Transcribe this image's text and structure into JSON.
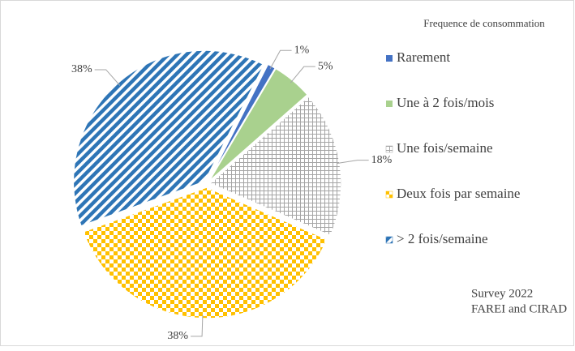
{
  "chart_data": {
    "type": "pie",
    "legend_title": "Frequence de consommation",
    "categories": [
      "Rarement",
      "Une à 2 fois/mois",
      "Une fois/semaine",
      "Deux fois par semaine",
      "> 2  fois/semaine"
    ],
    "values": [
      1,
      5,
      18,
      38,
      38
    ],
    "value_labels": [
      "1%",
      "5%",
      "18%",
      "38%",
      "38%"
    ],
    "colors": [
      "#4472c4",
      "#a9d18e",
      "#a5a5a5",
      "#ffc000",
      "#2e75b6"
    ],
    "patterns": [
      "solid",
      "solid",
      "grid",
      "checker",
      "stripes"
    ],
    "legend": "right",
    "annotation": [
      "Survey 2022",
      "FAREI and CIRAD"
    ]
  }
}
